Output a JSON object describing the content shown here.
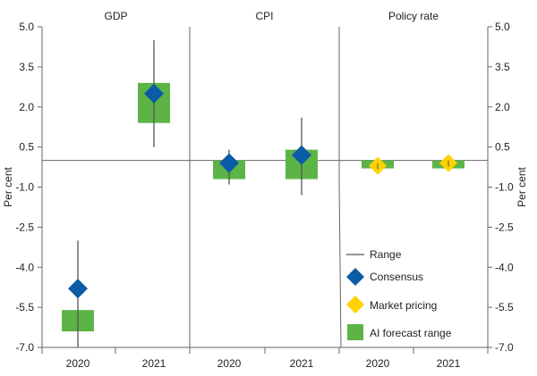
{
  "chart_data": {
    "type": "range",
    "panels": [
      {
        "title": "GDP",
        "categories": [
          "2020",
          "2021"
        ],
        "consensus": [
          -4.8,
          2.5
        ],
        "range": [
          [
            -7.0,
            -3.0
          ],
          [
            0.5,
            4.5
          ]
        ],
        "ai_forecast_range": [
          [
            -6.4,
            -5.6
          ],
          [
            1.4,
            2.9
          ]
        ],
        "market_pricing": [
          null,
          null
        ]
      },
      {
        "title": "CPI",
        "categories": [
          "2020",
          "2021"
        ],
        "consensus": [
          -0.1,
          0.2
        ],
        "range": [
          [
            -0.9,
            0.4
          ],
          [
            -1.3,
            1.6
          ]
        ],
        "ai_forecast_range": [
          [
            -0.7,
            0.0
          ],
          [
            -0.7,
            0.4
          ]
        ],
        "market_pricing": [
          null,
          null
        ]
      },
      {
        "title": "Policy rate",
        "categories": [
          "2020",
          "2021"
        ],
        "consensus": [
          null,
          null
        ],
        "range": [
          [
            -0.3,
            0.0
          ],
          [
            -0.3,
            0.0
          ]
        ],
        "ai_forecast_range": [
          [
            -0.3,
            0.0
          ],
          [
            -0.3,
            0.0
          ]
        ],
        "market_pricing": [
          -0.2,
          -0.1
        ]
      }
    ],
    "ylabel": "Per cent",
    "ylim": [
      -7.0,
      5.0
    ],
    "yticks": [
      "5.0",
      "3.5",
      "2.0",
      "0.5",
      "-1.0",
      "-2.5",
      "-4.0",
      "-5.5",
      "-7.0"
    ],
    "ytick_values": [
      5.0,
      3.5,
      2.0,
      0.5,
      -1.0,
      -2.5,
      -4.0,
      -5.5,
      -7.0
    ],
    "legend": [
      "Range",
      "Consensus",
      "Market pricing",
      "AI forecast range"
    ],
    "legend_position": "bottom-right",
    "colors": {
      "consensus": "#0b5ba6",
      "market_pricing": "#ffd200",
      "ai_forecast_range": "#5cb446",
      "range": "#555555",
      "axis": "#666666"
    }
  }
}
